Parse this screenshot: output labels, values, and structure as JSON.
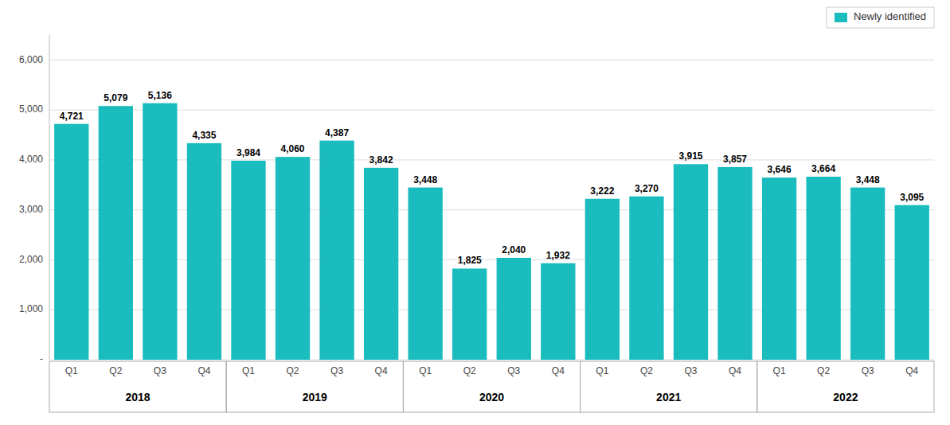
{
  "chart_data": {
    "type": "bar",
    "categories": [
      "Q1",
      "Q2",
      "Q3",
      "Q4",
      "Q1",
      "Q2",
      "Q3",
      "Q4",
      "Q1",
      "Q2",
      "Q3",
      "Q4",
      "Q1",
      "Q2",
      "Q3",
      "Q4",
      "Q1",
      "Q2",
      "Q3",
      "Q4"
    ],
    "x_groups": [
      "2018",
      "2019",
      "2020",
      "2021",
      "2022"
    ],
    "series": [
      {
        "name": "Newly identified",
        "color": "#1ABCBE",
        "values": [
          4721,
          5079,
          5136,
          4335,
          3984,
          4060,
          4387,
          3842,
          3448,
          1825,
          2040,
          1932,
          3222,
          3270,
          3915,
          3857,
          3646,
          3664,
          3448,
          3095
        ],
        "value_labels": [
          "4,721",
          "5,079",
          "5,136",
          "4,335",
          "3,984",
          "4,060",
          "4,387",
          "3,842",
          "3,448",
          "1,825",
          "2,040",
          "1,932",
          "3,222",
          "3,270",
          "3,915",
          "3,857",
          "3,646",
          "3,664",
          "3,448",
          "3,095"
        ]
      }
    ],
    "ylim": [
      0,
      6500
    ],
    "yticks": [
      {
        "value": 0,
        "label": "-"
      },
      {
        "value": 1000,
        "label": "1,000"
      },
      {
        "value": 2000,
        "label": "2,000"
      },
      {
        "value": 3000,
        "label": "3,000"
      },
      {
        "value": 4000,
        "label": "4,000"
      },
      {
        "value": 5000,
        "label": "5,000"
      },
      {
        "value": 6000,
        "label": "6,000"
      }
    ],
    "grid": true,
    "data_labels": true,
    "legend": "upper-right"
  }
}
